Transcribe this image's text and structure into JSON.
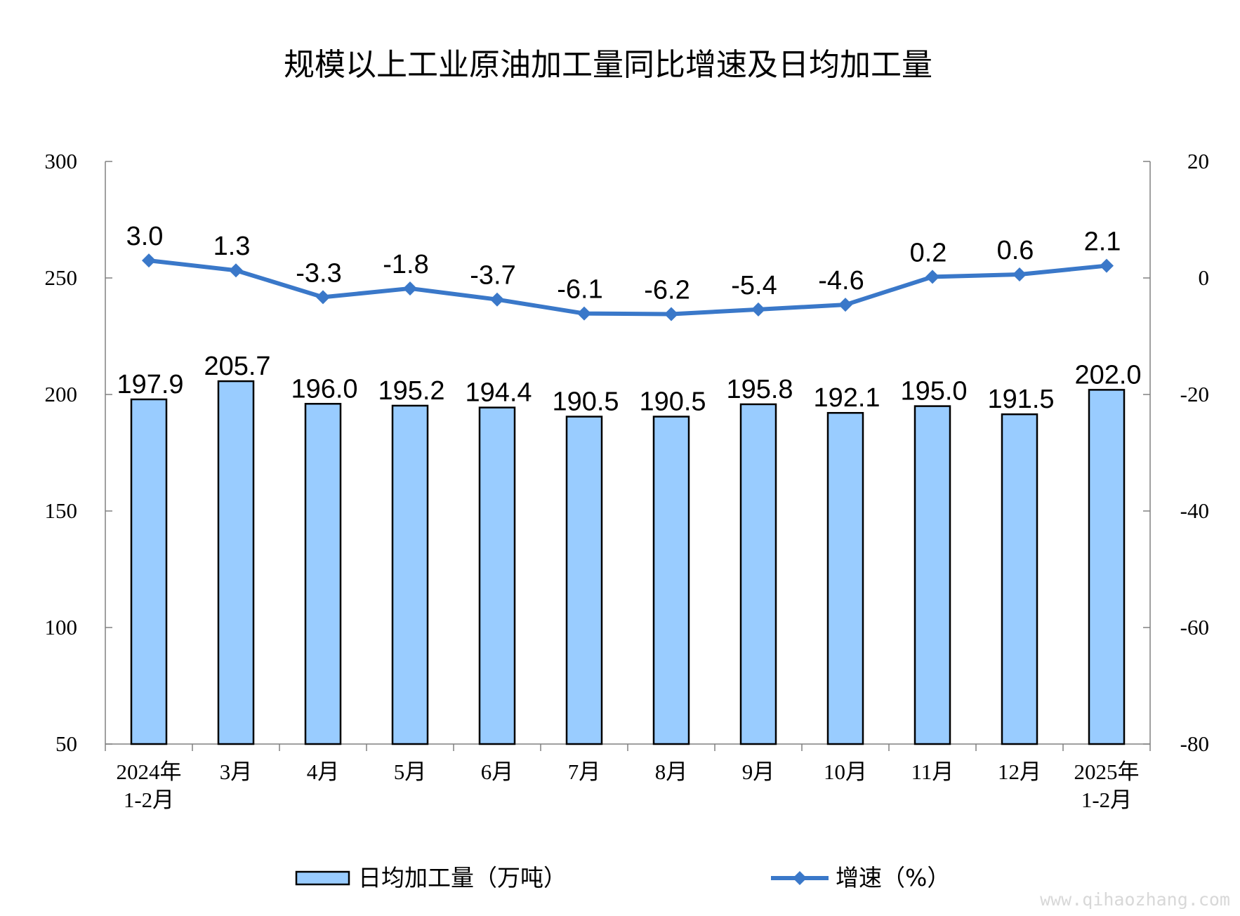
{
  "chart_data": {
    "type": "bar",
    "title": "规模以上工业原油加工量同比增速及日均加工量",
    "categories": [
      [
        "2024年",
        "1-2月"
      ],
      [
        "3月"
      ],
      [
        "4月"
      ],
      [
        "5月"
      ],
      [
        "6月"
      ],
      [
        "7月"
      ],
      [
        "8月"
      ],
      [
        "9月"
      ],
      [
        "10月"
      ],
      [
        "11月"
      ],
      [
        "12月"
      ],
      [
        "2025年",
        "1-2月"
      ]
    ],
    "series": [
      {
        "name": "日均加工量（万吨）",
        "type": "bar",
        "axis": "left",
        "color": "#99ccff",
        "values": [
          197.9,
          205.7,
          196.0,
          195.2,
          194.4,
          190.5,
          190.5,
          195.8,
          192.1,
          195.0,
          191.5,
          202.0
        ],
        "labels": [
          "197.9",
          "205.7",
          "196.0",
          "195.2",
          "194.4",
          "190.5",
          "190.5",
          "195.8",
          "192.1",
          "195.0",
          "191.5",
          "202.0"
        ]
      },
      {
        "name": "增速（%）",
        "type": "line",
        "axis": "right",
        "color": "#3a78c9",
        "marker": "diamond",
        "values": [
          3.0,
          1.3,
          -3.3,
          -1.8,
          -3.7,
          -6.1,
          -6.2,
          -5.4,
          -4.6,
          0.2,
          0.6,
          2.1
        ],
        "labels": [
          "3.0",
          "1.3",
          "-3.3",
          "-1.8",
          "-3.7",
          "-6.1",
          "-6.2",
          "-5.4",
          "-4.6",
          "0.2",
          "0.6",
          "2.1"
        ]
      }
    ],
    "y_left": {
      "min": 50,
      "max": 300,
      "ticks": [
        "50",
        "100",
        "150",
        "200",
        "250",
        "300"
      ]
    },
    "y_right": {
      "min": -80,
      "max": 20,
      "ticks": [
        "-80",
        "-60",
        "-40",
        "-20",
        "0",
        "20"
      ]
    },
    "legend_position": "bottom",
    "grid": false
  },
  "watermark": "www.qihaozhang.com"
}
